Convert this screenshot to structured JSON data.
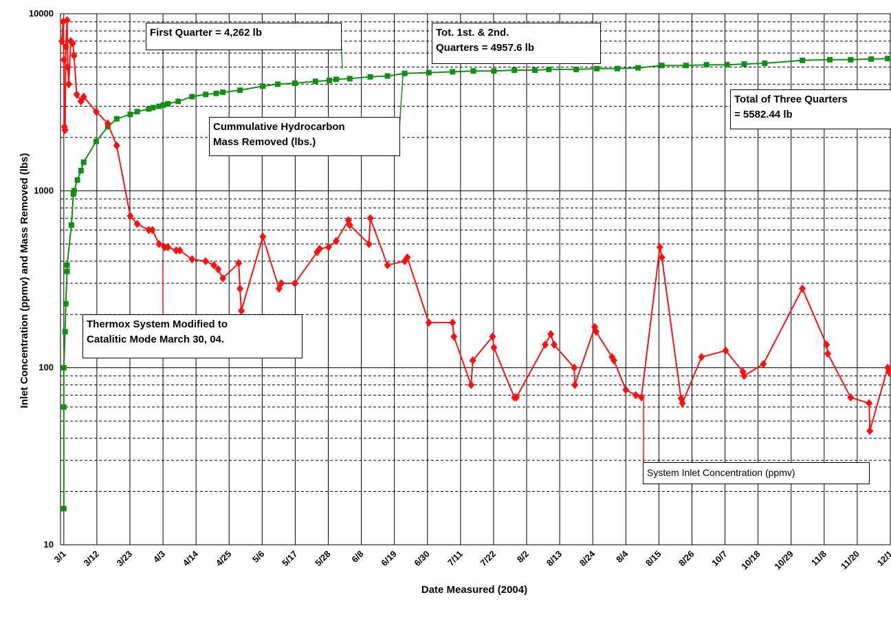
{
  "chart_data": {
    "type": "line",
    "xlabel": "Date Measured (2004)",
    "ylabel": "Inlet Concentration (ppmv) and Mass Removed (lbs)",
    "log_y": true,
    "grid": true,
    "minor_grid": true,
    "xlim": [
      -0.1,
      25
    ],
    "ylim": [
      10,
      10000
    ],
    "yticks": [
      10,
      100,
      1000,
      10000
    ],
    "xticks": [
      {
        "value": 0,
        "label": "3/1"
      },
      {
        "value": 1,
        "label": "3/12"
      },
      {
        "value": 2,
        "label": "3/23"
      },
      {
        "value": 3,
        "label": "4/3"
      },
      {
        "value": 4,
        "label": "4/14"
      },
      {
        "value": 5,
        "label": "4/25"
      },
      {
        "value": 6,
        "label": "5/6"
      },
      {
        "value": 7,
        "label": "5/17"
      },
      {
        "value": 8,
        "label": "5/28"
      },
      {
        "value": 9,
        "label": "6/8"
      },
      {
        "value": 10,
        "label": "6/19"
      },
      {
        "value": 11,
        "label": "6/30"
      },
      {
        "value": 12,
        "label": "7/11"
      },
      {
        "value": 13,
        "label": "7/22"
      },
      {
        "value": 14,
        "label": "8/2"
      },
      {
        "value": 15,
        "label": "8/13"
      },
      {
        "value": 16,
        "label": "8/24"
      },
      {
        "value": 17,
        "label": "8/4"
      },
      {
        "value": 18,
        "label": "8/15"
      },
      {
        "value": 19,
        "label": "8/26"
      },
      {
        "value": 20,
        "label": "10/7"
      },
      {
        "value": 21,
        "label": "10/18"
      },
      {
        "value": 22,
        "label": "10/29"
      },
      {
        "value": 23,
        "label": "11/8"
      },
      {
        "value": 24,
        "label": "11/20"
      },
      {
        "value": 25,
        "label": "12/1"
      }
    ],
    "series": [
      {
        "name": "Cummulative Hydrocarbon\nMass Removed (lbs.)",
        "color": "#109010",
        "marker": "square",
        "x": [
          0,
          0,
          0,
          0.04,
          0.06,
          0.1,
          0.1,
          0.23,
          0.29,
          0.31,
          0.41,
          0.52,
          0.6,
          0.98,
          1.33,
          1.6,
          2.01,
          2.22,
          2.57,
          2.7,
          2.88,
          3.01,
          3.15,
          3.46,
          3.88,
          4.29,
          4.61,
          4.81,
          5.33,
          6.02,
          6.47,
          6.99,
          7.61,
          8.03,
          8.24,
          8.65,
          9.27,
          9.79,
          10.31,
          11.04,
          11.76,
          12.39,
          13.01,
          13.63,
          14.25,
          14.67,
          15.5,
          16.12,
          16.74,
          17.37,
          18.09,
          18.82,
          19.44,
          20.06,
          20.58,
          21.2,
          22.34,
          23.17,
          23.8,
          24.42,
          24.92
        ],
        "values": [
          16,
          60,
          100,
          160,
          230,
          350,
          380,
          640,
          960,
          1000,
          1150,
          1300,
          1450,
          1900,
          2300,
          2550,
          2700,
          2800,
          2900,
          2950,
          3000,
          3050,
          3100,
          3200,
          3400,
          3500,
          3550,
          3600,
          3700,
          3900,
          4000,
          4050,
          4150,
          4200,
          4262,
          4300,
          4400,
          4450,
          4600,
          4650,
          4700,
          4750,
          4750,
          4800,
          4800,
          4850,
          4850,
          4900,
          4900,
          4950,
          5100,
          5100,
          5150,
          5150,
          5200,
          5250,
          5450,
          5500,
          5500,
          5550,
          5582
        ]
      },
      {
        "name": "System Inlet Concentration (ppmv)",
        "color": "#ff1010",
        "marker": "diamond",
        "x": [
          -0.06,
          -0.02,
          0,
          0.02,
          0.04,
          0.06,
          0.1,
          0.12,
          0.15,
          0.21,
          0.27,
          0.31,
          0.39,
          0.52,
          0.6,
          0.98,
          1.33,
          1.6,
          2.01,
          2.22,
          2.57,
          2.68,
          2.88,
          3.05,
          3.15,
          3.4,
          3.51,
          3.88,
          4.29,
          4.54,
          4.67,
          4.81,
          5.29,
          5.33,
          5.37,
          6.02,
          6.51,
          6.58,
          6.99,
          7.66,
          7.74,
          8.01,
          8.24,
          8.61,
          8.65,
          9.23,
          9.27,
          9.79,
          10.31,
          10.39,
          11.04,
          11.76,
          11.8,
          12.32,
          12.37,
          12.97,
          13.01,
          13.63,
          13.69,
          14.56,
          14.73,
          14.83,
          15.44,
          15.46,
          16.06,
          16.1,
          16.58,
          16.64,
          17.0,
          17.3,
          17.47,
          18.03,
          18.09,
          18.67,
          18.71,
          19.29,
          20.02,
          20.54,
          20.58,
          21.16,
          22.34,
          23.07,
          23.11,
          23.8,
          24.36,
          24.38,
          24.92,
          24.96
        ],
        "values": [
          7000,
          9000,
          5500,
          2300,
          2200,
          6500,
          9200,
          5000,
          4000,
          7000,
          6800,
          5800,
          3500,
          3200,
          3400,
          2800,
          2400,
          1800,
          720,
          650,
          600,
          600,
          500,
          480,
          480,
          460,
          460,
          410,
          400,
          380,
          360,
          320,
          390,
          280,
          210,
          550,
          280,
          300,
          300,
          450,
          470,
          480,
          520,
          680,
          640,
          500,
          700,
          380,
          400,
          420,
          180,
          180,
          150,
          80,
          110,
          150,
          130,
          68,
          68,
          135,
          155,
          135,
          100,
          80,
          170,
          160,
          115,
          110,
          75,
          70,
          68,
          480,
          420,
          67,
          63,
          115,
          125,
          95,
          90,
          105,
          280,
          135,
          120,
          68,
          63,
          44,
          100,
          95
        ]
      }
    ],
    "annotations": [
      "First Quarter = 4,262 lb",
      "Tot. 1st. & 2nd.\nQuarters = 4957.6 lb",
      "Total of Three Quarters\n= 5582.44 lb",
      "Thermox System Modified to\nCatalitic Mode March 30, 04."
    ]
  }
}
